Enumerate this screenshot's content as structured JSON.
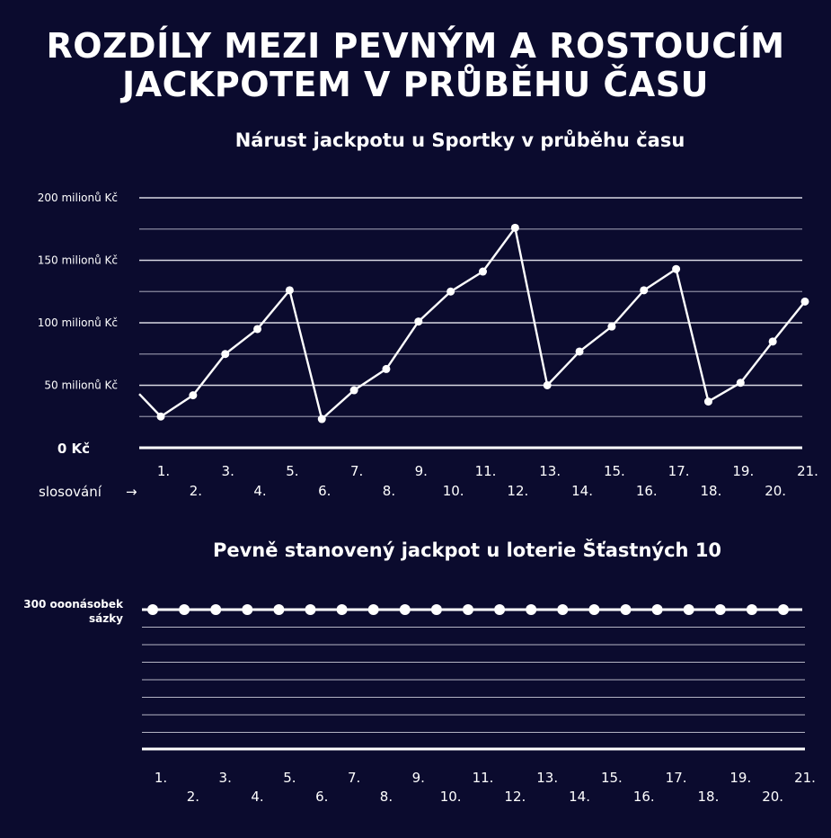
{
  "title_line1": "ROZDÍLY MEZI PEVNÝM A ROSTOUCÍM",
  "title_line2": "JACKPOTEM V PRŮBĚHU ČASU",
  "colors": {
    "background": "#0b0b2e",
    "line": "#ffffff",
    "grid": "#8a8aa0"
  },
  "chart_data": [
    {
      "type": "line",
      "title": "Nárust jackpotu u Sportky v průběhu času",
      "categories": [
        "1.",
        "2.",
        "3.",
        "4.",
        "5.",
        "6.",
        "7.",
        "8.",
        "9.",
        "10.",
        "11.",
        "12.",
        "13.",
        "14.",
        "15.",
        "16.",
        "17.",
        "18.",
        "19.",
        "20.",
        "21."
      ],
      "values": [
        25,
        42,
        75,
        95,
        126,
        23,
        46,
        63,
        101,
        125,
        141,
        176,
        50,
        77,
        97,
        126,
        143,
        37,
        52,
        85,
        117
      ],
      "start_value": 43,
      "ylim": [
        0,
        200
      ],
      "yticks": [
        {
          "value": 200,
          "label": "200 milionů Kč"
        },
        {
          "value": 150,
          "label": "150 milionů Kč"
        },
        {
          "value": 100,
          "label": "100 milionů Kč"
        },
        {
          "value": 50,
          "label": "50 milionů Kč"
        },
        {
          "value": 0,
          "label": "0 Kč"
        }
      ],
      "xlabel": "slosování",
      "arrow": "→",
      "grid": true
    },
    {
      "type": "line",
      "title": "Pevně stanovený jackpot u loterie Šťastných 10",
      "categories": [
        "1.",
        "2.",
        "3.",
        "4.",
        "5.",
        "6.",
        "7.",
        "8.",
        "9.",
        "10.",
        "11.",
        "12.",
        "13.",
        "14.",
        "15.",
        "16.",
        "17.",
        "18.",
        "19.",
        "20.",
        "21."
      ],
      "values": [
        300000,
        300000,
        300000,
        300000,
        300000,
        300000,
        300000,
        300000,
        300000,
        300000,
        300000,
        300000,
        300000,
        300000,
        300000,
        300000,
        300000,
        300000,
        300000,
        300000,
        300000
      ],
      "ylabel_line1": "300 ooonásobek",
      "ylabel_line2": "sázky",
      "grid": true
    }
  ]
}
